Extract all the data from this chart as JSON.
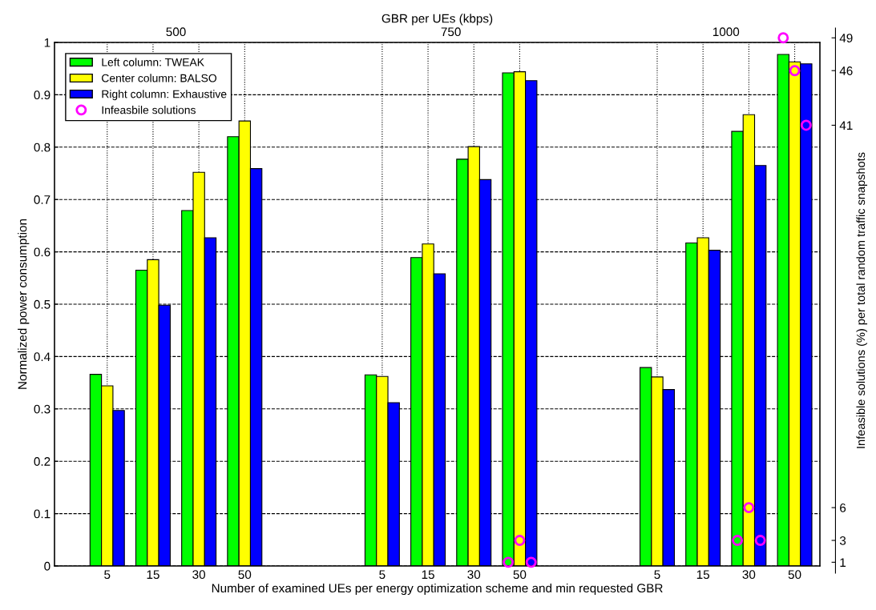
{
  "chart_data": {
    "type": "bar",
    "xlabel": "Number of examined UEs per energy optimization scheme and min requested GBR",
    "ylabel": "Normalized power consumption",
    "y2label": "Infeasible solutions (%) per total random traffic snapshots",
    "x2label": "GBR per UEs (kbps)",
    "categories": [
      "5",
      "15",
      "30",
      "50",
      null,
      null,
      "5",
      "15",
      "30",
      "50",
      null,
      null,
      "5",
      "15",
      "30",
      "50"
    ],
    "annotations": [
      "500",
      "750",
      "1000"
    ],
    "ylim": [
      0,
      1
    ],
    "yticks": [
      0,
      0.1,
      0.2,
      0.3,
      0.4,
      0.5,
      0.6,
      0.7,
      0.8,
      0.9,
      1
    ],
    "y2lim": [
      0,
      49.9
    ],
    "y2ticks": [
      1,
      3,
      6,
      41,
      46,
      49
    ],
    "series": [
      {
        "name": "Left column: TWEAK",
        "color": "#00ff00",
        "values": [
          0.366,
          0.565,
          0.679,
          0.82,
          null,
          null,
          0.365,
          0.589,
          0.777,
          0.942,
          null,
          null,
          0.379,
          0.617,
          0.83,
          0.977
        ]
      },
      {
        "name": "Center column: BALSO",
        "color": "#ffff00",
        "values": [
          0.344,
          0.585,
          0.752,
          0.85,
          null,
          null,
          0.362,
          0.615,
          0.801,
          0.944,
          null,
          null,
          0.361,
          0.627,
          0.862,
          0.963
        ]
      },
      {
        "name": "Right column: Exhaustive",
        "color": "#0000ff",
        "values": [
          0.297,
          0.498,
          0.627,
          0.759,
          null,
          null,
          0.312,
          0.558,
          0.738,
          0.927,
          null,
          null,
          0.337,
          0.603,
          0.765,
          0.959
        ]
      },
      {
        "name": "Infeasbile solutions",
        "type": "scatter",
        "axis": "y2",
        "marker": "circle",
        "color": "#ff00ff",
        "values": [
          null,
          null,
          null,
          null,
          null,
          null,
          null,
          null,
          null,
          1,
          null,
          null,
          null,
          null,
          3,
          49
        ]
      },
      {
        "type": "scatter",
        "axis": "y2",
        "marker": "circle",
        "color": "#ff00ff",
        "values": [
          null,
          null,
          null,
          null,
          null,
          null,
          null,
          null,
          null,
          3,
          null,
          null,
          null,
          null,
          6,
          46
        ]
      },
      {
        "type": "scatter",
        "axis": "y2",
        "marker": "circle",
        "color": "#ff00ff",
        "values": [
          null,
          null,
          null,
          null,
          null,
          null,
          null,
          null,
          null,
          1,
          null,
          null,
          null,
          null,
          3,
          41
        ]
      }
    ],
    "grid": true,
    "legend": "top left"
  }
}
